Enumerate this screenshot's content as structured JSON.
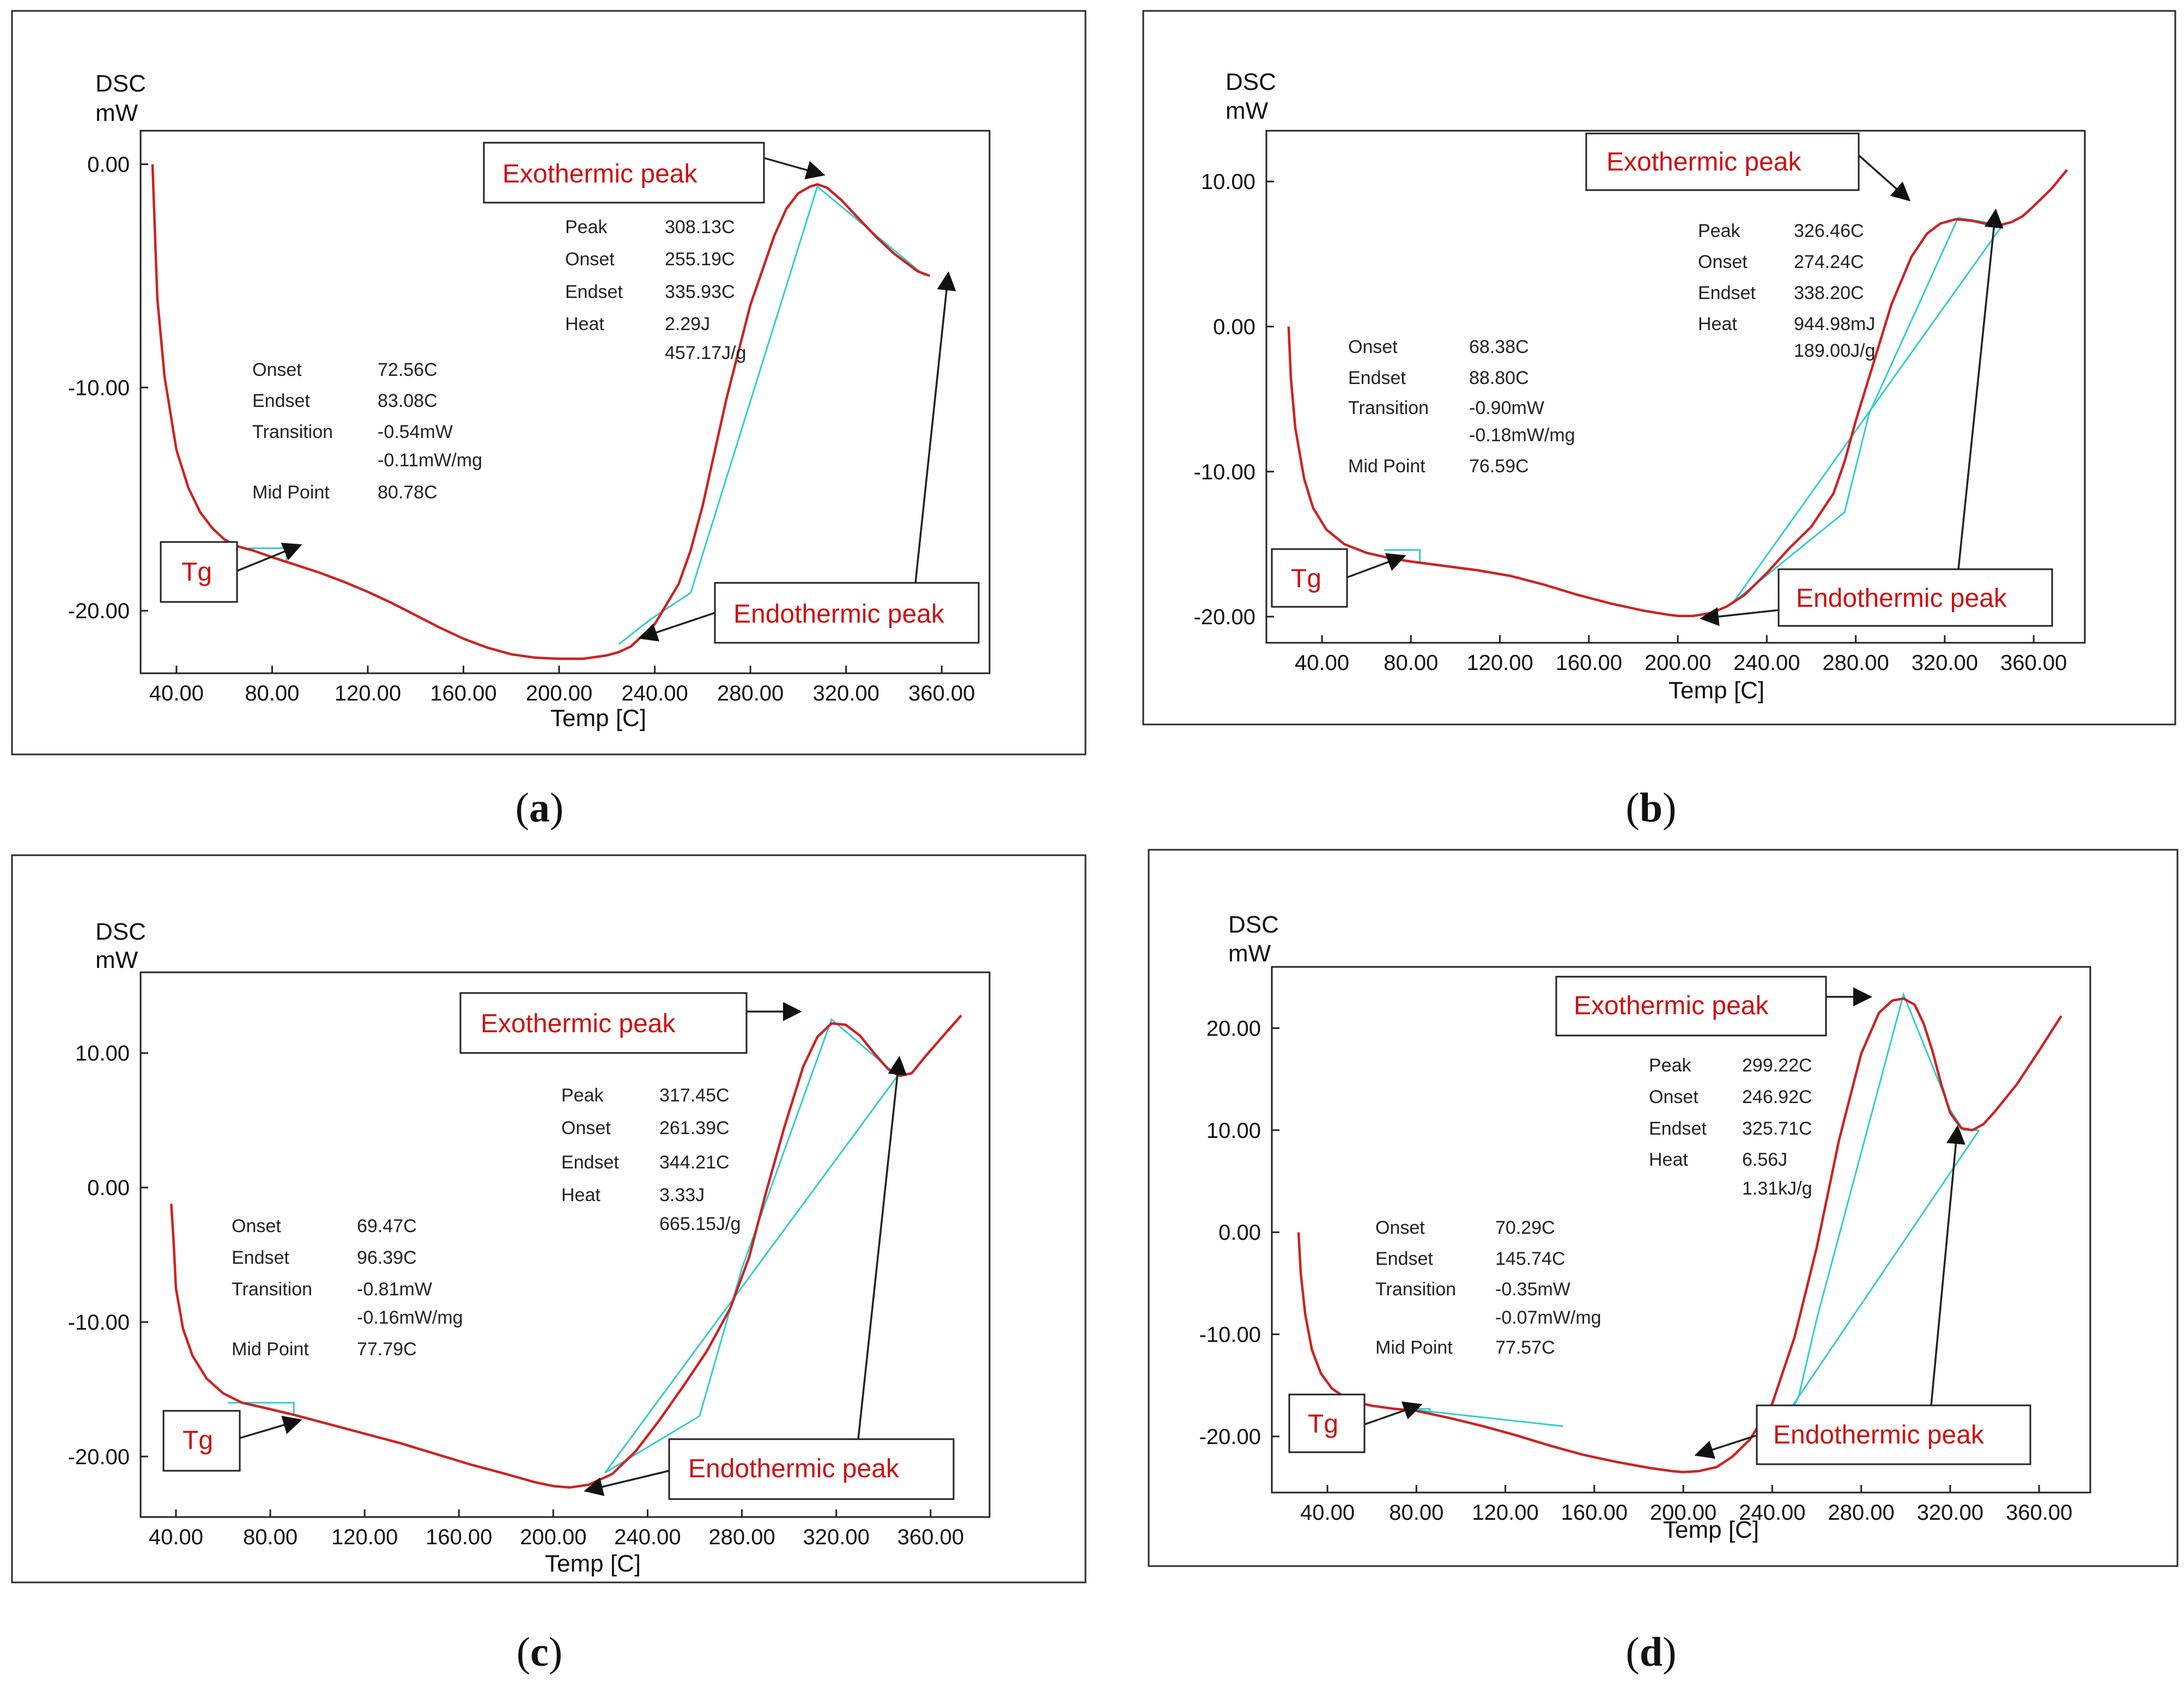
{
  "colors": {
    "curve": "#cc2222",
    "baseline": "#33cccc",
    "callout_text": "#cc1111"
  },
  "callout_labels": {
    "exo": "Exothermic peak",
    "endo": "Endothermic peak",
    "tg": "Tg"
  },
  "chart_data": [
    {
      "panel": "a",
      "caption_letter": "a",
      "type": "line",
      "ylabel_top": "DSC",
      "ylabel_unit": "mW",
      "xlabel": "Temp [C]",
      "xlim": [
        25,
        380
      ],
      "ylim": [
        -22.8,
        1.5
      ],
      "xticks": [
        40,
        80,
        120,
        160,
        200,
        240,
        280,
        320,
        360
      ],
      "xtick_labels": [
        "40.00",
        "80.00",
        "120.00",
        "160.00",
        "200.00",
        "240.00",
        "280.00",
        "320.00",
        "360.00"
      ],
      "yticks": [
        0,
        -10,
        -20
      ],
      "ytick_labels": [
        "0.00",
        "-10.00",
        "-20.00"
      ],
      "series": [
        {
          "name": "DSC",
          "x": [
            30,
            30.8,
            32,
            35,
            40,
            45,
            50,
            55,
            60,
            65,
            72,
            80,
            90,
            100,
            110,
            120,
            130,
            140,
            150,
            160,
            170,
            180,
            190,
            200,
            210,
            220,
            225,
            230,
            240,
            250,
            255,
            260,
            270,
            280,
            290,
            295,
            300,
            305,
            308,
            312,
            318,
            325,
            333,
            340,
            350,
            355
          ],
          "y": [
            0,
            -2.5,
            -6,
            -9.5,
            -12.8,
            -14.5,
            -15.6,
            -16.3,
            -16.8,
            -17.1,
            -17.3,
            -17.6,
            -17.95,
            -18.3,
            -18.7,
            -19.15,
            -19.65,
            -20.2,
            -20.75,
            -21.25,
            -21.65,
            -21.95,
            -22.1,
            -22.15,
            -22.15,
            -22.0,
            -21.85,
            -21.6,
            -20.6,
            -18.8,
            -17.3,
            -15.3,
            -10.5,
            -6.3,
            -3.2,
            -2.0,
            -1.3,
            -1.0,
            -0.9,
            -1.05,
            -1.6,
            -2.4,
            -3.3,
            -4.0,
            -4.8,
            -5.0
          ]
        }
      ],
      "baselines": [
        {
          "x": [
            70,
            86,
            86
          ],
          "y": [
            -17.2,
            -17.2,
            -17.85
          ]
        },
        {
          "x": [
            225,
            238,
            255,
            308,
            353
          ],
          "y": [
            -21.5,
            -20.4,
            -19.2,
            -1.0,
            -5.0
          ]
        }
      ],
      "annotation_lines": [
        {
          "label": "Onset",
          "value": "72.56C"
        },
        {
          "label": "Endset",
          "value": "83.08C"
        },
        {
          "label": "Transition",
          "value": "-0.54mW"
        },
        {
          "label": "",
          "value": "-0.11mW/mg"
        },
        {
          "label": "Mid Point",
          "value": "80.78C"
        },
        {
          "label": "Peak",
          "value": "308.13C"
        },
        {
          "label": "Onset",
          "value": "255.19C"
        },
        {
          "label": "Endset",
          "value": "335.93C"
        },
        {
          "label": "Heat",
          "value": "2.29J"
        },
        {
          "label": "",
          "value": "457.17J/g"
        }
      ]
    },
    {
      "panel": "b",
      "caption_letter": "b",
      "type": "line",
      "ylabel_top": "DSC",
      "ylabel_unit": "mW",
      "xlabel": "Temp [C]",
      "xlim": [
        15,
        383
      ],
      "ylim": [
        -21.8,
        13.5
      ],
      "xticks": [
        40,
        80,
        120,
        160,
        200,
        240,
        280,
        320,
        360
      ],
      "xtick_labels": [
        "40.00",
        "80.00",
        "120.00",
        "160.00",
        "200.00",
        "240.00",
        "280.00",
        "320.00",
        "360.00"
      ],
      "yticks": [
        10,
        0,
        -10,
        -20
      ],
      "ytick_labels": [
        "10.00",
        "0.00",
        "-10.00",
        "-20.00"
      ],
      "series": [
        {
          "name": "DSC",
          "x": [
            25,
            26,
            28,
            32,
            36,
            42,
            50,
            60,
            70,
            80,
            95,
            110,
            125,
            140,
            155,
            170,
            185,
            195,
            200,
            207,
            215,
            222,
            230,
            240,
            250,
            260,
            270,
            275,
            280,
            288,
            296,
            305,
            312,
            318,
            325,
            332,
            338,
            345,
            350,
            355,
            360,
            368,
            375
          ],
          "y": [
            0,
            -3.5,
            -7,
            -10.5,
            -12.5,
            -14,
            -15,
            -15.6,
            -15.95,
            -16.2,
            -16.5,
            -16.8,
            -17.2,
            -17.8,
            -18.5,
            -19.1,
            -19.6,
            -19.85,
            -19.95,
            -19.95,
            -19.75,
            -19.3,
            -18.5,
            -17.0,
            -15.3,
            -13.8,
            -11.5,
            -9.3,
            -6.5,
            -2.5,
            1.5,
            4.8,
            6.4,
            7.1,
            7.4,
            7.3,
            7.1,
            7.0,
            7.2,
            7.6,
            8.3,
            9.5,
            10.8
          ]
        }
      ],
      "baselines": [
        {
          "x": [
            68,
            84,
            84
          ],
          "y": [
            -15.4,
            -15.4,
            -16.2
          ]
        },
        {
          "x": [
            225,
            275,
            286,
            326,
            346
          ],
          "y": [
            -19.0,
            -12.8,
            -6.0,
            7.5,
            7.0
          ]
        },
        {
          "x": [
            225,
            346
          ],
          "y": [
            -19.0,
            7.0
          ]
        }
      ],
      "annotation_lines": [
        {
          "label": "Onset",
          "value": "68.38C"
        },
        {
          "label": "Endset",
          "value": "88.80C"
        },
        {
          "label": "Transition",
          "value": "-0.90mW"
        },
        {
          "label": "",
          "value": "-0.18mW/mg"
        },
        {
          "label": "Mid Point",
          "value": "76.59C"
        },
        {
          "label": "Peak",
          "value": "326.46C"
        },
        {
          "label": "Onset",
          "value": "274.24C"
        },
        {
          "label": "Endset",
          "value": "338.20C"
        },
        {
          "label": "Heat",
          "value": "944.98mJ"
        },
        {
          "label": "",
          "value": "189.00J/g"
        }
      ]
    },
    {
      "panel": "c",
      "caption_letter": "c",
      "type": "line",
      "ylabel_top": "DSC",
      "ylabel_unit": "mW",
      "xlabel": "Temp [C]",
      "xlim": [
        25,
        385
      ],
      "ylim": [
        -24.5,
        16
      ],
      "xticks": [
        40,
        80,
        120,
        160,
        200,
        240,
        280,
        320,
        360
      ],
      "xtick_labels": [
        "40.00",
        "80.00",
        "120.00",
        "160.00",
        "200.00",
        "240.00",
        "280.00",
        "320.00",
        "360.00"
      ],
      "yticks": [
        10,
        0,
        -10,
        -20
      ],
      "ytick_labels": [
        "10.00",
        "0.00",
        "-10.00",
        "-20.00"
      ],
      "series": [
        {
          "name": "DSC",
          "x": [
            38,
            39,
            40,
            43,
            47,
            53,
            60,
            68,
            78,
            90,
            105,
            120,
            135,
            150,
            165,
            180,
            192,
            200,
            207,
            215,
            225,
            235,
            245,
            255,
            265,
            275,
            283,
            290,
            298,
            306,
            312,
            318,
            324,
            330,
            336,
            342,
            347,
            352,
            358,
            365,
            373
          ],
          "y": [
            -1.2,
            -4,
            -7.5,
            -10.5,
            -12.5,
            -14.2,
            -15.3,
            -16.0,
            -16.4,
            -16.9,
            -17.6,
            -18.3,
            -19.0,
            -19.8,
            -20.6,
            -21.3,
            -21.9,
            -22.2,
            -22.3,
            -22.1,
            -21.3,
            -19.6,
            -17.3,
            -14.8,
            -12.2,
            -9.0,
            -5.2,
            -0.5,
            4.5,
            9.0,
            11.2,
            12.2,
            12.1,
            11.3,
            10.0,
            8.8,
            8.3,
            8.5,
            9.8,
            11.2,
            12.8
          ]
        }
      ],
      "baselines": [
        {
          "x": [
            62,
            90,
            90
          ],
          "y": [
            -16.0,
            -16.0,
            -16.8
          ]
        },
        {
          "x": [
            222,
            262,
            280,
            318,
            346
          ],
          "y": [
            -21.2,
            -17.0,
            -6.0,
            12.5,
            8.3
          ]
        },
        {
          "x": [
            222,
            346
          ],
          "y": [
            -21.2,
            8.3
          ]
        }
      ],
      "annotation_lines": [
        {
          "label": "Onset",
          "value": "69.47C"
        },
        {
          "label": "Endset",
          "value": "96.39C"
        },
        {
          "label": "Transition",
          "value": "-0.81mW"
        },
        {
          "label": "",
          "value": "-0.16mW/mg"
        },
        {
          "label": "Mid Point",
          "value": "77.79C"
        },
        {
          "label": "Peak",
          "value": "317.45C"
        },
        {
          "label": "Onset",
          "value": "261.39C"
        },
        {
          "label": "Endset",
          "value": "344.21C"
        },
        {
          "label": "Heat",
          "value": "3.33J"
        },
        {
          "label": "",
          "value": "665.15J/g"
        }
      ]
    },
    {
      "panel": "d",
      "caption_letter": "d",
      "type": "line",
      "ylabel_top": "DSC",
      "ylabel_unit": "mW",
      "xlabel": "Temp [C]",
      "xlim": [
        15,
        383
      ],
      "ylim": [
        -25.5,
        26
      ],
      "xticks": [
        40,
        80,
        120,
        160,
        200,
        240,
        280,
        320,
        360
      ],
      "xtick_labels": [
        "40.00",
        "80.00",
        "120.00",
        "160.00",
        "200.00",
        "240.00",
        "280.00",
        "320.00",
        "360.00"
      ],
      "yticks": [
        20,
        10,
        0,
        -10,
        -20
      ],
      "ytick_labels": [
        "20.00",
        "10.00",
        "0.00",
        "-10.00",
        "-20.00"
      ],
      "series": [
        {
          "name": "DSC",
          "x": [
            27,
            28,
            30,
            33,
            37,
            42,
            50,
            60,
            70,
            80,
            95,
            110,
            125,
            140,
            155,
            170,
            185,
            195,
            200,
            207,
            215,
            222,
            230,
            240,
            250,
            260,
            270,
            280,
            288,
            294,
            299,
            304,
            308,
            312,
            316,
            320,
            325,
            330,
            335,
            340,
            350,
            360,
            370
          ],
          "y": [
            0,
            -4,
            -8,
            -11.5,
            -13.8,
            -15.3,
            -16.5,
            -17.0,
            -17.3,
            -17.5,
            -18.2,
            -19.0,
            -19.9,
            -20.9,
            -21.8,
            -22.5,
            -23.1,
            -23.4,
            -23.5,
            -23.4,
            -23.0,
            -22.0,
            -20.3,
            -16.8,
            -10.3,
            -1.5,
            9.0,
            17.5,
            21.5,
            22.7,
            22.9,
            22.3,
            20.5,
            17.8,
            14.5,
            11.7,
            10.2,
            10.0,
            10.6,
            11.8,
            14.5,
            17.8,
            21.2
          ]
        }
      ],
      "baselines": [
        {
          "x": [
            77,
            86,
            86
          ],
          "y": [
            -17.3,
            -17.3,
            -17.8
          ]
        },
        {
          "x": [
            75,
            146
          ],
          "y": [
            -17.3,
            -19.0
          ]
        },
        {
          "x": [
            244,
            252,
            260,
            299,
            320,
            326,
            333
          ],
          "y": [
            -19.8,
            -16.0,
            -8.5,
            23.3,
            12.0,
            10.0,
            10.0
          ]
        },
        {
          "x": [
            246,
            333
          ],
          "y": [
            -18.0,
            10.0
          ]
        }
      ],
      "annotation_lines": [
        {
          "label": "Onset",
          "value": "70.29C"
        },
        {
          "label": "Endset",
          "value": "145.74C"
        },
        {
          "label": "Transition",
          "value": "-0.35mW"
        },
        {
          "label": "",
          "value": "-0.07mW/mg"
        },
        {
          "label": "Mid Point",
          "value": "77.57C"
        },
        {
          "label": "Peak",
          "value": "299.22C"
        },
        {
          "label": "Onset",
          "value": "246.92C"
        },
        {
          "label": "Endset",
          "value": "325.71C"
        },
        {
          "label": "Heat",
          "value": "6.56J"
        },
        {
          "label": "",
          "value": "1.31kJ/g"
        }
      ]
    }
  ]
}
